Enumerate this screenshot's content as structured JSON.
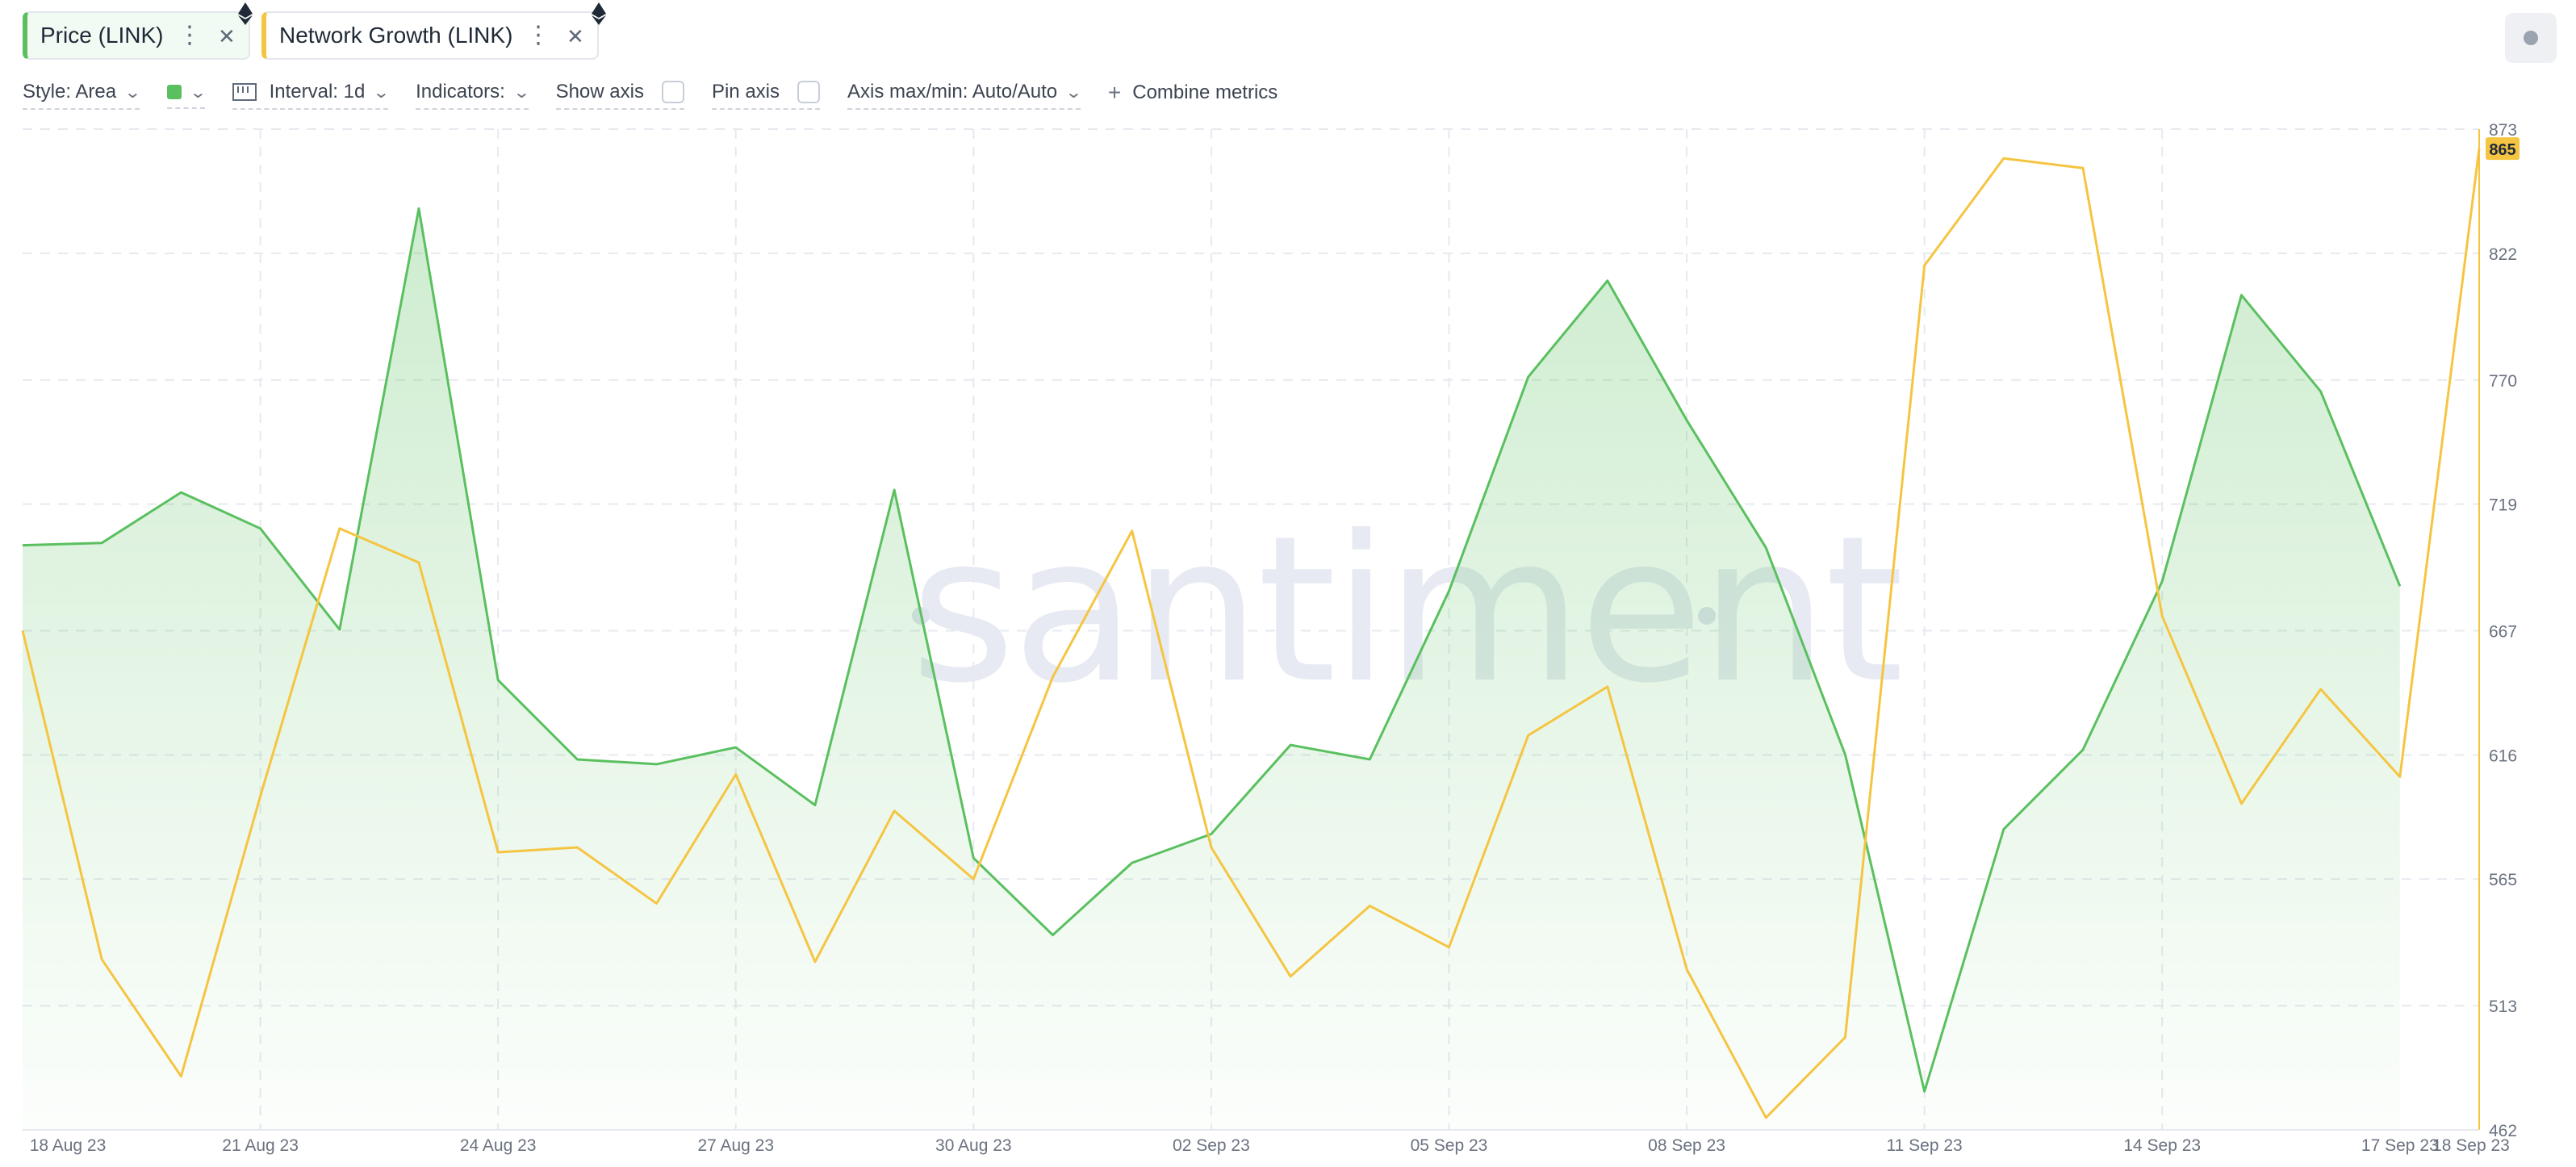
{
  "metrics": [
    {
      "label": "Price (LINK)",
      "color": "#5ac05f"
    },
    {
      "label": "Network Growth (LINK)",
      "color": "#f5c542"
    }
  ],
  "icons": {
    "menu": "kebab-icon",
    "close": "close-icon",
    "eth": "ethereum-icon"
  },
  "toolbar": {
    "style": "Style: Area",
    "interval": "Interval: 1d",
    "indicators": "Indicators:",
    "show_axis": "Show axis",
    "pin_axis": "Pin axis",
    "axis_maxmin": "Axis max/min: Auto/Auto",
    "combine": "Combine metrics"
  },
  "watermark": "santiment",
  "chart_data": {
    "type": "area",
    "x": [
      "18 Aug 23",
      "19 Aug 23",
      "20 Aug 23",
      "21 Aug 23",
      "22 Aug 23",
      "23 Aug 23",
      "24 Aug 23",
      "25 Aug 23",
      "26 Aug 23",
      "27 Aug 23",
      "28 Aug 23",
      "29 Aug 23",
      "30 Aug 23",
      "31 Aug 23",
      "01 Sep 23",
      "02 Sep 23",
      "03 Sep 23",
      "04 Sep 23",
      "05 Sep 23",
      "06 Sep 23",
      "07 Sep 23",
      "08 Sep 23",
      "09 Sep 23",
      "10 Sep 23",
      "11 Sep 23",
      "12 Sep 23",
      "13 Sep 23",
      "14 Sep 23",
      "15 Sep 23",
      "16 Sep 23",
      "17 Sep 23",
      "18 Sep 23"
    ],
    "xtick_labels": [
      "18 Aug 23",
      "21 Aug 23",
      "24 Aug 23",
      "27 Aug 23",
      "30 Aug 23",
      "02 Sep 23",
      "05 Sep 23",
      "08 Sep 23",
      "11 Sep 23",
      "14 Sep 23",
      "17 Sep 23",
      "18 Sep 23"
    ],
    "series": [
      {
        "name": "Price (LINK)",
        "style": "area",
        "color": "#5ac05f",
        "values": [
          7.05,
          7.06,
          7.27,
          7.12,
          6.7,
          8.45,
          6.49,
          6.16,
          6.14,
          6.21,
          5.97,
          7.28,
          5.75,
          5.43,
          5.73,
          5.85,
          6.22,
          6.16,
          6.86,
          7.75,
          8.15,
          7.57,
          7.04,
          6.18,
          4.78,
          5.87,
          6.2,
          6.9,
          8.09,
          7.69,
          6.88,
          null
        ]
      },
      {
        "name": "Network Growth (LINK)",
        "style": "line",
        "color": "#f5c542",
        "values": [
          667,
          532,
          484,
          599,
          709,
          695,
          576,
          578,
          555,
          608,
          531,
          593,
          565,
          648,
          708,
          578,
          525,
          554,
          537,
          624,
          644,
          528,
          467,
          500,
          817,
          861,
          857,
          673,
          596,
          643,
          607,
          865
        ]
      }
    ],
    "yaxis": {
      "ticks": [
        873,
        822,
        770,
        719,
        667,
        616,
        565,
        513,
        462
      ],
      "range": [
        462,
        873
      ],
      "last_value_label": "865",
      "color": "#f5c542"
    },
    "grid": true
  }
}
